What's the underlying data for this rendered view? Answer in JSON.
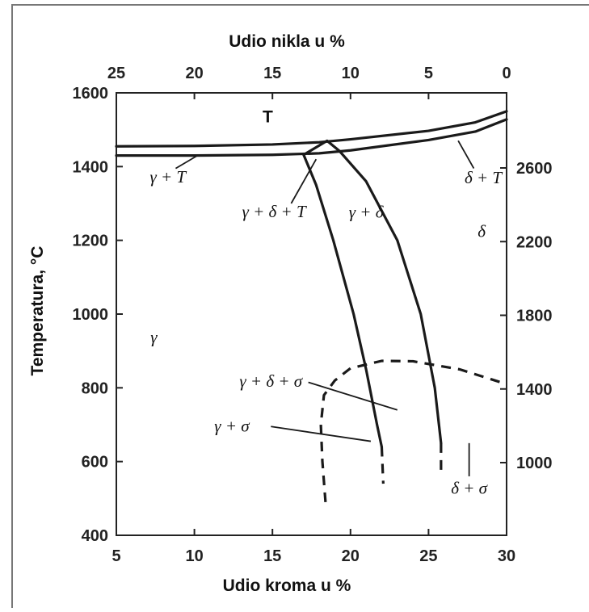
{
  "chart_data": {
    "type": "line",
    "title": "",
    "x_axis_bottom": {
      "label": "Udio kroma u %",
      "range": [
        5,
        30
      ],
      "ticks": [
        5,
        10,
        15,
        20,
        25,
        30
      ]
    },
    "x_axis_top": {
      "label": "Udio nikla u %",
      "range": [
        25,
        0
      ],
      "ticks": [
        25,
        20,
        15,
        10,
        5,
        0
      ]
    },
    "y_axis_left": {
      "label": "Temperatura, °C",
      "range": [
        400,
        1600
      ],
      "ticks": [
        400,
        600,
        800,
        1000,
        1200,
        1400,
        1600
      ]
    },
    "y_axis_right": {
      "label": "",
      "ticks": [
        1000,
        1400,
        1800,
        2200,
        2600
      ]
    },
    "grid": false,
    "series": [
      {
        "style": "solid",
        "points": [
          [
            5,
            1455
          ],
          [
            10,
            1456
          ],
          [
            15,
            1460
          ],
          [
            18,
            1466
          ],
          [
            20,
            1474
          ],
          [
            25,
            1497
          ],
          [
            28,
            1520
          ],
          [
            30,
            1550
          ]
        ]
      },
      {
        "style": "solid",
        "points": [
          [
            5,
            1430
          ],
          [
            10,
            1430
          ],
          [
            15,
            1432
          ],
          [
            18,
            1436
          ],
          [
            20,
            1444
          ],
          [
            25,
            1472
          ],
          [
            28,
            1495
          ],
          [
            30,
            1528
          ]
        ]
      },
      {
        "style": "solid",
        "points": [
          [
            17,
            1432
          ],
          [
            18.5,
            1470
          ],
          [
            19.3,
            1442
          ]
        ]
      },
      {
        "style": "solid",
        "points": [
          [
            17,
            1432
          ],
          [
            17.8,
            1350
          ],
          [
            18.9,
            1200
          ],
          [
            20.2,
            1000
          ],
          [
            21.0,
            850
          ],
          [
            21.7,
            700
          ],
          [
            22.0,
            640
          ]
        ]
      },
      {
        "style": "solid",
        "points": [
          [
            19.3,
            1442
          ],
          [
            21.0,
            1360
          ],
          [
            23.0,
            1200
          ],
          [
            24.5,
            1000
          ],
          [
            25.4,
            800
          ],
          [
            25.8,
            650
          ]
        ]
      },
      {
        "style": "dashed",
        "points": [
          [
            18.4,
            490
          ],
          [
            18.2,
            600
          ],
          [
            18.1,
            700
          ],
          [
            18.3,
            780
          ],
          [
            19.0,
            820
          ],
          [
            20.0,
            853
          ],
          [
            22.0,
            873
          ],
          [
            24.0,
            872
          ],
          [
            27.0,
            850
          ],
          [
            30.0,
            810
          ]
        ]
      },
      {
        "style": "dashed",
        "points": [
          [
            22.0,
            640
          ],
          [
            22.1,
            540
          ]
        ]
      },
      {
        "style": "dashed",
        "points": [
          [
            25.8,
            650
          ],
          [
            25.8,
            560
          ]
        ]
      }
    ],
    "annotations": [
      {
        "text": "T",
        "x": 14.7,
        "y": 1535
      },
      {
        "text": "γ + T",
        "x": 8.3,
        "y": 1372
      },
      {
        "text": "δ + T",
        "x": 28.5,
        "y": 1370
      },
      {
        "text": "γ + δ + T",
        "x": 15.1,
        "y": 1278
      },
      {
        "text": "γ + δ",
        "x": 21.0,
        "y": 1277
      },
      {
        "text": "δ",
        "x": 28.4,
        "y": 1225
      },
      {
        "text": "γ",
        "x": 7.4,
        "y": 938
      },
      {
        "text": "γ + δ + σ",
        "x": 14.9,
        "y": 818
      },
      {
        "text": "γ + σ",
        "x": 12.4,
        "y": 697
      },
      {
        "text": "δ + σ",
        "x": 27.6,
        "y": 528
      }
    ]
  }
}
